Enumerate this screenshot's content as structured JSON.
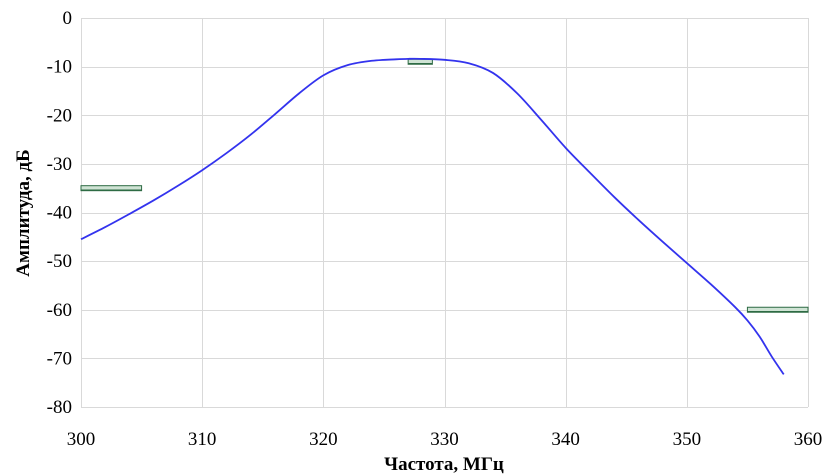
{
  "chart_data": {
    "type": "line",
    "title": "",
    "xlabel": "Частота, МГц",
    "ylabel": "Амплитуда, дБ",
    "xlim": [
      300,
      360
    ],
    "ylim": [
      -80,
      0
    ],
    "x_ticks": [
      300,
      310,
      320,
      330,
      340,
      350,
      360
    ],
    "y_ticks": [
      0,
      -10,
      -20,
      -30,
      -40,
      -50,
      -60,
      -70,
      -80
    ],
    "x_tick_labels": [
      "300",
      "310",
      "320",
      "330",
      "340",
      "350",
      "360"
    ],
    "y_tick_labels": [
      "0",
      "-10",
      "-20",
      "-30",
      "-40",
      "-50",
      "-60",
      "-70",
      "-80"
    ],
    "grid": true,
    "legend": "none",
    "series": [
      {
        "color": "#3333ee",
        "x": [
          300,
          302,
          304,
          306,
          308,
          310,
          312,
          314,
          316,
          318,
          320,
          322,
          324,
          326,
          327,
          328,
          330,
          332,
          334,
          336,
          338,
          340,
          342,
          344,
          346,
          348,
          350,
          352,
          354,
          355,
          356,
          357,
          358
        ],
        "y": [
          -45.5,
          -43.0,
          -40.3,
          -37.5,
          -34.5,
          -31.3,
          -27.8,
          -24.0,
          -19.8,
          -15.5,
          -11.8,
          -9.7,
          -8.8,
          -8.5,
          -8.4,
          -8.4,
          -8.6,
          -9.3,
          -11.3,
          -15.5,
          -21.0,
          -26.7,
          -31.8,
          -36.8,
          -41.5,
          -46.0,
          -50.4,
          -54.8,
          -59.5,
          -62.2,
          -65.5,
          -69.6,
          -73.3
        ]
      }
    ],
    "markers": [
      {
        "x0": 300,
        "x1": 305,
        "y": -35,
        "color": "#2e6b44"
      },
      {
        "x0": 327,
        "x1": 329,
        "y": -9,
        "color": "#2e6b44"
      },
      {
        "x0": 355,
        "x1": 360,
        "y": -60,
        "color": "#2e6b44"
      }
    ]
  }
}
